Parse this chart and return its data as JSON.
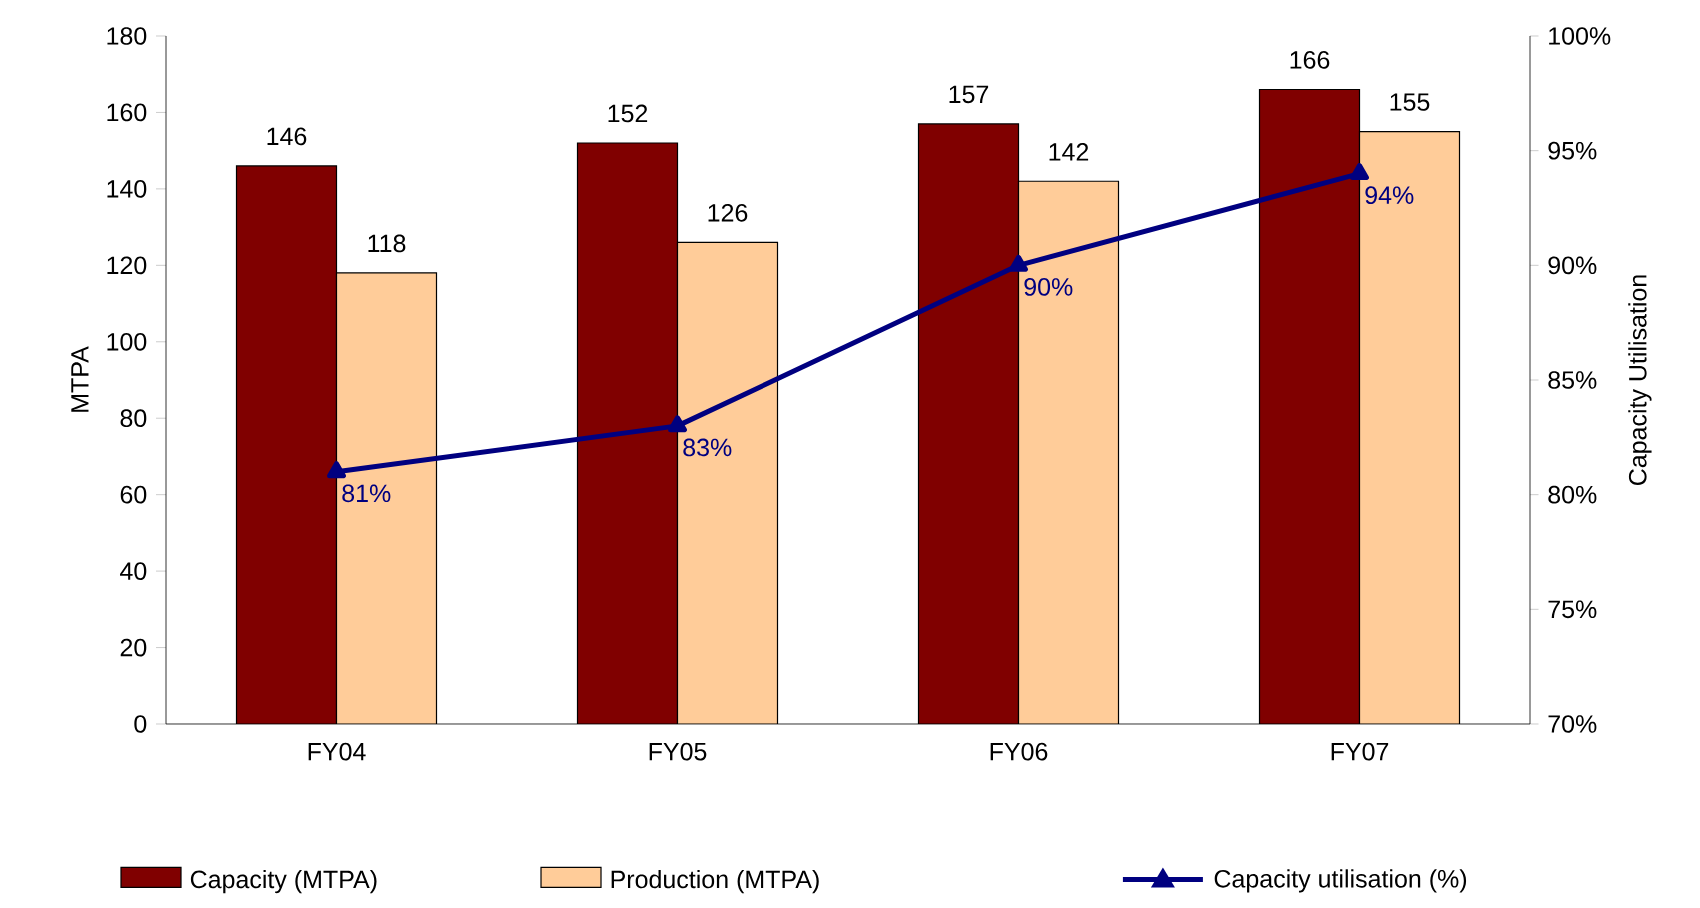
{
  "chart_data": {
    "type": "bar",
    "categories": [
      "FY04",
      "FY05",
      "FY06",
      "FY07"
    ],
    "ylabel": "MTPA",
    "y2label": "Capacity Utilisation",
    "series": [
      {
        "name": "Capacity (MTPA)",
        "color": "#800000",
        "values": [
          146,
          152,
          157,
          166
        ]
      },
      {
        "name": "Production (MTPA)",
        "color": "#ffcc99",
        "values": [
          118,
          126,
          142,
          155
        ]
      },
      {
        "name": "Capacity utilisation (%)",
        "type": "line",
        "axis": "y2",
        "color": "#000080",
        "marker": "triangle",
        "values": [
          81,
          83,
          90,
          94
        ],
        "value_labels": [
          "81%",
          "83%",
          "90%",
          "94%"
        ]
      }
    ],
    "data_labels": true,
    "ylim": [
      0,
      180
    ],
    "yticks": [
      0,
      20,
      40,
      60,
      80,
      100,
      120,
      140,
      160,
      180
    ],
    "y2lim": [
      70,
      100
    ],
    "y2ticks": [
      {
        "value": 70,
        "label": "70%"
      },
      {
        "value": 75,
        "label": "75%"
      },
      {
        "value": 80,
        "label": "80%"
      },
      {
        "value": 85,
        "label": "85%"
      },
      {
        "value": 90,
        "label": "90%"
      },
      {
        "value": 95,
        "label": "95%"
      },
      {
        "value": 100,
        "label": "100%"
      }
    ],
    "legend": "bottom",
    "grid": false
  }
}
